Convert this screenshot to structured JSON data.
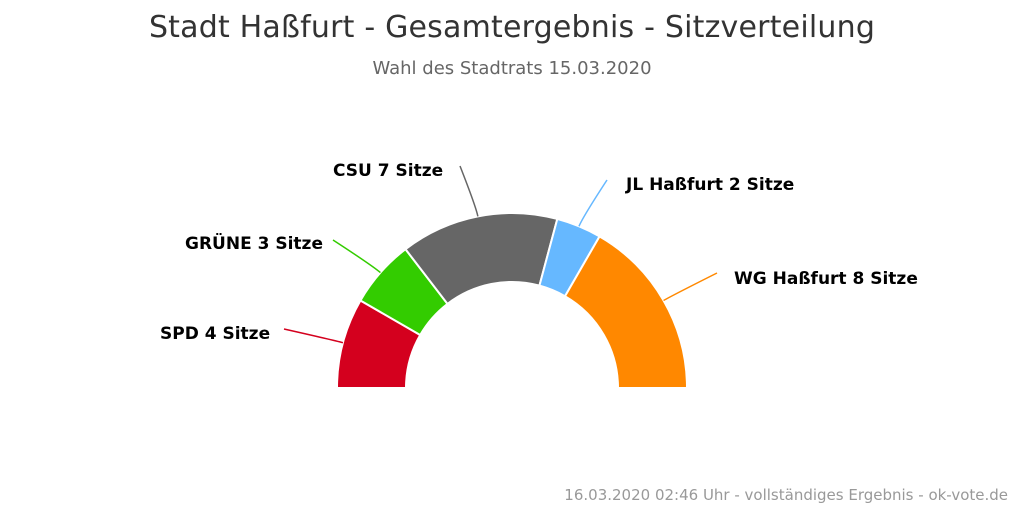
{
  "title": "Stadt Haßfurt - Gesamtergebnis - Sitzverteilung",
  "subtitle": "Wahl des Stadtrats 15.03.2020",
  "credits": "16.03.2020 02:46 Uhr - vollständiges Ergebnis - ok-vote.de",
  "chart_data": {
    "type": "pie",
    "variant": "semi-circle-donut",
    "unit_label": "Sitze",
    "total_seats": 24,
    "slices": [
      {
        "name": "SPD",
        "value": 4,
        "color": "#d4001e",
        "label": "SPD 4 Sitze"
      },
      {
        "name": "GRÜNE",
        "value": 3,
        "color": "#33cc00",
        "label": "GRÜNE 3 Sitze"
      },
      {
        "name": "CSU",
        "value": 7,
        "color": "#666666",
        "label": "CSU 7 Sitze"
      },
      {
        "name": "JL Haßfurt",
        "value": 2,
        "color": "#66b8ff",
        "label": "JL Haßfurt 2 Sitze"
      },
      {
        "name": "WG Haßfurt",
        "value": 8,
        "color": "#ff8800",
        "label": "WG Haßfurt 8 Sitze"
      }
    ]
  }
}
